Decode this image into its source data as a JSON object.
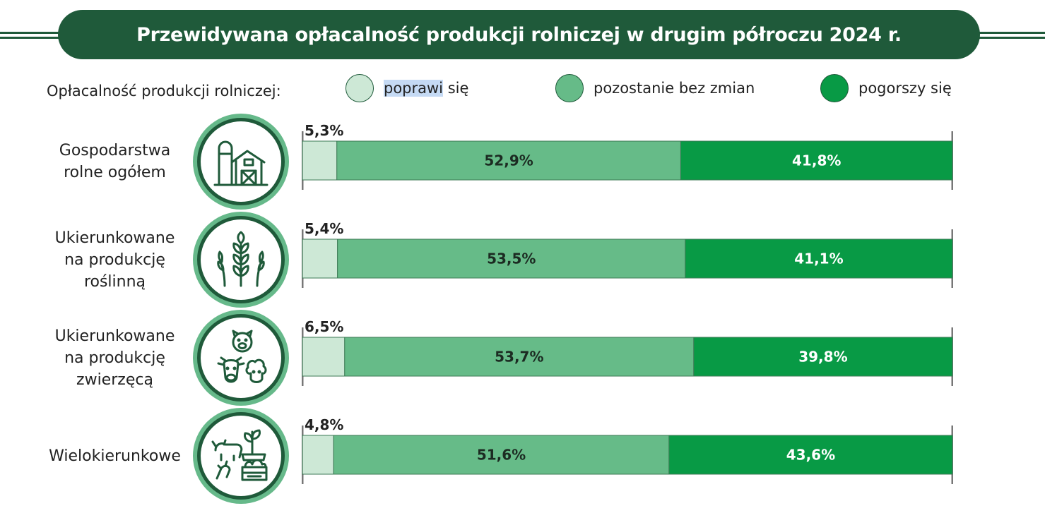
{
  "title": "Przewidywana opłacalność produkcji rolniczej w drugim półroczu 2024 r.",
  "legend": {
    "title": "Opłacalność produkcji rolniczej:",
    "items": [
      {
        "label_highlight": "poprawi",
        "label_rest": " się",
        "color": "#cde8d6"
      },
      {
        "label": "pozostanie bez zmian",
        "color": "#66bb88"
      },
      {
        "label": "pogorszy się",
        "color": "#089a45"
      }
    ]
  },
  "icons": [
    "farm-barn-silo-icon",
    "wheat-icon",
    "livestock-pig-cow-sheep-icon",
    "mixed-farming-icon"
  ],
  "chart_data": {
    "type": "bar",
    "orientation": "horizontal",
    "stacked": true,
    "categories": [
      "Gospodarstwa\nrolne ogółem",
      "Ukierunkowane\nna produkcję\nroślinną",
      "Ukierunkowane\nna produkcję\nzwierzęcą",
      "Wielokierunkowe"
    ],
    "series": [
      {
        "name": "poprawi się",
        "values": [
          5.3,
          5.4,
          6.5,
          4.8
        ],
        "labels": [
          "5,3%",
          "5,4%",
          "6,5%",
          "4,8%"
        ],
        "color": "#cde8d6"
      },
      {
        "name": "pozostanie bez zmian",
        "values": [
          52.9,
          53.5,
          53.7,
          51.6
        ],
        "labels": [
          "52,9%",
          "53,5%",
          "53,7%",
          "51,6%"
        ],
        "color": "#66bb88"
      },
      {
        "name": "pogorszy się",
        "values": [
          41.8,
          41.1,
          39.8,
          43.6
        ],
        "labels": [
          "41,8%",
          "41,1%",
          "39,8%",
          "43,6%"
        ],
        "color": "#089a45"
      }
    ],
    "xlim": [
      0,
      100
    ],
    "legend_position": "top"
  }
}
